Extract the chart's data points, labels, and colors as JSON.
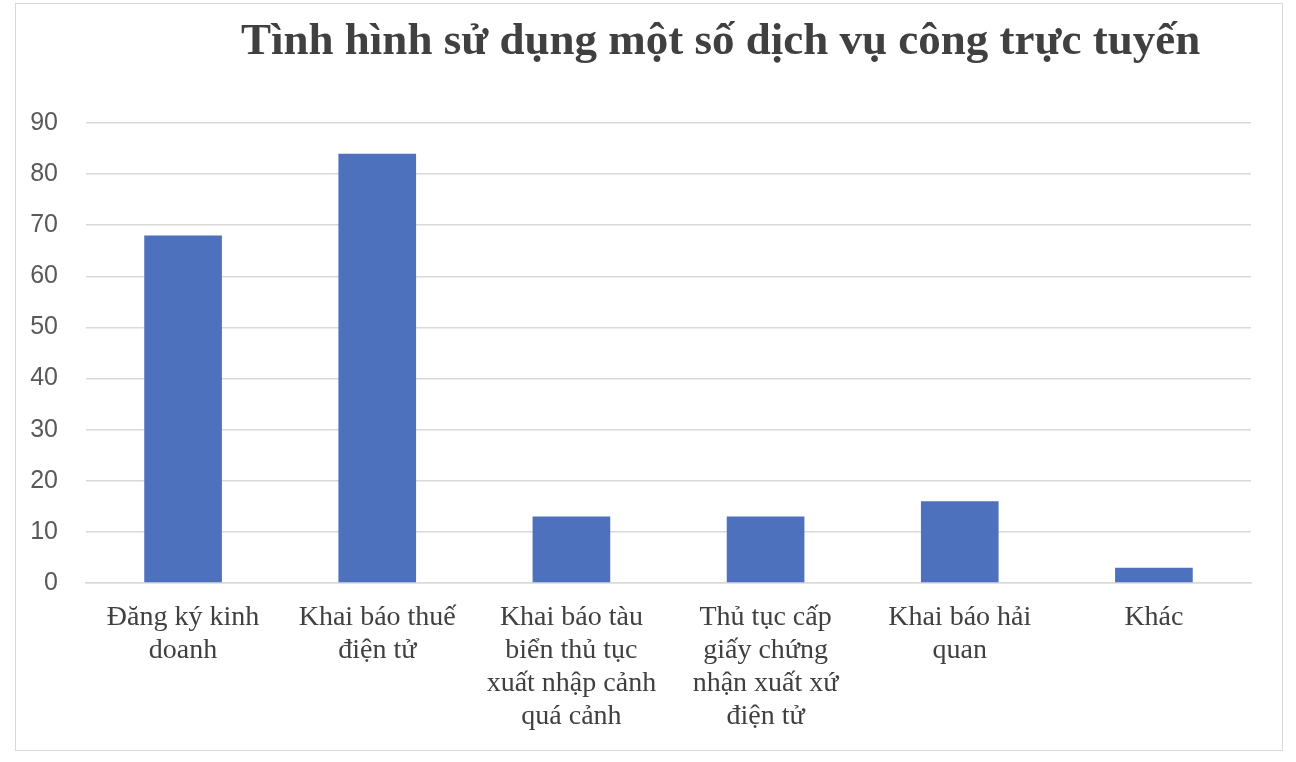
{
  "chart_data": {
    "type": "bar",
    "title": "Tình hình sử dụng một số dịch vụ công trực tuyến",
    "categories": [
      "Đăng ký kinh doanh",
      "Khai báo thuế điện tử",
      "Khai báo tàu biển thủ tục xuất nhập cảnh quá cảnh",
      "Thủ tục cấp giấy chứng nhận xuất xứ điện tử",
      "Khai báo hải quan",
      "Khác"
    ],
    "values": [
      68,
      84,
      13,
      13,
      16,
      3
    ],
    "color": "#4e71be",
    "ylim": [
      0,
      90
    ],
    "yticks": [
      0,
      10,
      20,
      30,
      40,
      50,
      60,
      70,
      80,
      90
    ],
    "grid": "y"
  }
}
